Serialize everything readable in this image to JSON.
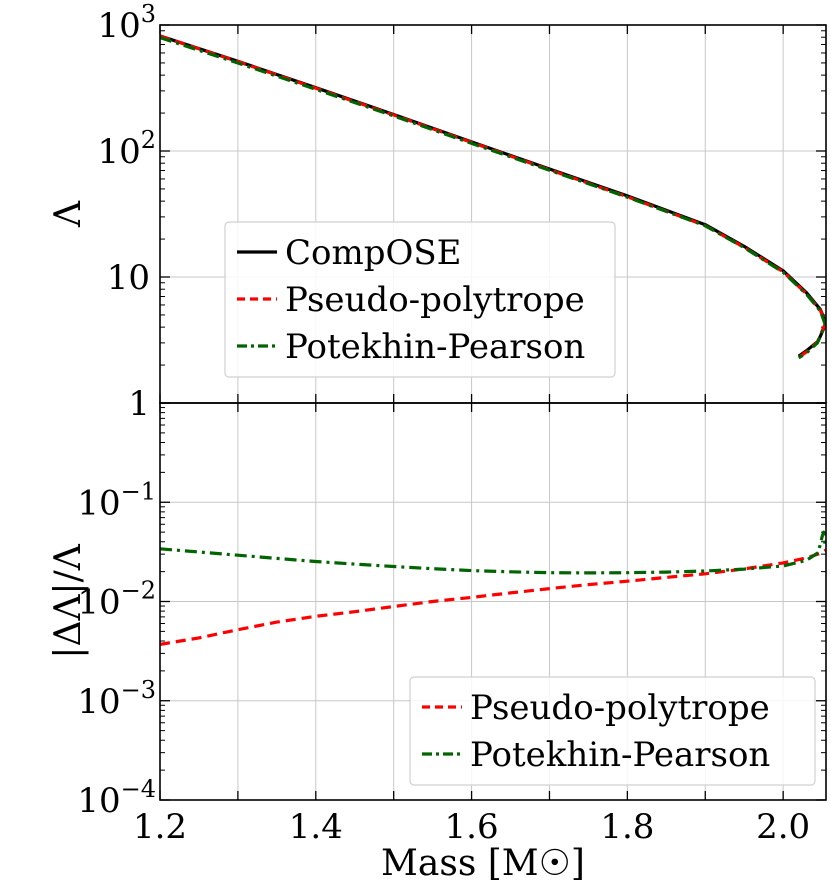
{
  "chart_data": [
    {
      "panel": "top",
      "type": "line",
      "ylabel": "Λ",
      "yscale": "log",
      "ylim": [
        1,
        1000
      ],
      "xlim": [
        1.2,
        2.055
      ],
      "grid": true,
      "yticks": [
        {
          "value": 1000,
          "base": "10",
          "exp": "3"
        },
        {
          "value": 100,
          "base": "10",
          "exp": "2"
        },
        {
          "value": 10,
          "base": "10",
          "exp": ""
        },
        {
          "value": 1,
          "base": "1",
          "exp": ""
        }
      ],
      "legend": {
        "placement": "center-left"
      },
      "series": [
        {
          "name": "CompOSE",
          "color": "#000000",
          "dash": "solid",
          "points": [
            [
              1.2,
              820
            ],
            [
              1.3,
              515
            ],
            [
              1.4,
              318
            ],
            [
              1.5,
              195
            ],
            [
              1.6,
              118
            ],
            [
              1.7,
              72
            ],
            [
              1.8,
              44
            ],
            [
              1.9,
              26
            ],
            [
              1.95,
              17.5
            ],
            [
              2.0,
              11.2
            ],
            [
              2.03,
              7.5
            ],
            [
              2.048,
              5.5
            ],
            [
              2.055,
              4.3
            ],
            [
              2.045,
              3.1
            ],
            [
              2.03,
              2.6
            ],
            [
              2.02,
              2.35
            ]
          ]
        },
        {
          "name": "Pseudo-polytrope",
          "color": "#ff0000",
          "dash": "dashed",
          "points": [
            [
              1.2,
              817
            ],
            [
              1.3,
              512
            ],
            [
              1.4,
              315
            ],
            [
              1.5,
              193
            ],
            [
              1.6,
              117
            ],
            [
              1.7,
              71
            ],
            [
              1.8,
              43.3
            ],
            [
              1.9,
              25.6
            ],
            [
              1.95,
              17.2
            ],
            [
              2.0,
              11.0
            ],
            [
              2.03,
              7.35
            ],
            [
              2.048,
              5.4
            ],
            [
              2.054,
              4.25
            ],
            [
              2.044,
              3.05
            ],
            [
              2.03,
              2.55
            ],
            [
              2.02,
              2.3
            ]
          ]
        },
        {
          "name": "Potekhin-Pearson",
          "color": "#006400",
          "dash": "dashdot",
          "points": [
            [
              1.2,
              795
            ],
            [
              1.3,
              499
            ],
            [
              1.4,
              309
            ],
            [
              1.5,
              190
            ],
            [
              1.6,
              115
            ],
            [
              1.7,
              70.3
            ],
            [
              1.8,
              43.0
            ],
            [
              1.9,
              25.5
            ],
            [
              1.95,
              17.1
            ],
            [
              2.0,
              10.9
            ],
            [
              2.03,
              7.3
            ],
            [
              2.048,
              5.35
            ],
            [
              2.054,
              4.2
            ],
            [
              2.044,
              3.0
            ],
            [
              2.03,
              2.5
            ],
            [
              2.02,
              2.28
            ]
          ]
        }
      ]
    },
    {
      "panel": "bottom",
      "type": "line",
      "xlabel": "Mass [M☉]",
      "ylabel": "|ΔΛ|/Λ",
      "yscale": "log",
      "ylim": [
        0.0001,
        1
      ],
      "xlim": [
        1.2,
        2.055
      ],
      "grid": true,
      "xticks": [
        "1.2",
        "1.4",
        "1.6",
        "1.8",
        "2.0"
      ],
      "yticks": [
        {
          "value": 0.1,
          "base": "10",
          "exp": "−1"
        },
        {
          "value": 0.01,
          "base": "10",
          "exp": "−2"
        },
        {
          "value": 0.001,
          "base": "10",
          "exp": "−3"
        },
        {
          "value": 0.0001,
          "base": "10",
          "exp": "−4"
        }
      ],
      "legend": {
        "placement": "bottom-right"
      },
      "series": [
        {
          "name": "Pseudo-polytrope",
          "color": "#ff0000",
          "dash": "dashed",
          "points": [
            [
              1.2,
              0.0037
            ],
            [
              1.25,
              0.0043
            ],
            [
              1.3,
              0.0052
            ],
            [
              1.35,
              0.0062
            ],
            [
              1.4,
              0.0071
            ],
            [
              1.45,
              0.0079
            ],
            [
              1.5,
              0.0089
            ],
            [
              1.55,
              0.01
            ],
            [
              1.6,
              0.011
            ],
            [
              1.65,
              0.0122
            ],
            [
              1.7,
              0.0135
            ],
            [
              1.75,
              0.0148
            ],
            [
              1.8,
              0.016
            ],
            [
              1.85,
              0.0175
            ],
            [
              1.9,
              0.019
            ],
            [
              1.95,
              0.0213
            ],
            [
              2.0,
              0.0245
            ],
            [
              2.03,
              0.0275
            ],
            [
              2.05,
              0.031
            ],
            [
              2.055,
              0.033
            ]
          ]
        },
        {
          "name": "Potekhin-Pearson",
          "color": "#006400",
          "dash": "dashdot",
          "points": [
            [
              1.2,
              0.034
            ],
            [
              1.25,
              0.0315
            ],
            [
              1.3,
              0.0293
            ],
            [
              1.35,
              0.0272
            ],
            [
              1.4,
              0.0253
            ],
            [
              1.45,
              0.0238
            ],
            [
              1.5,
              0.0225
            ],
            [
              1.55,
              0.0214
            ],
            [
              1.6,
              0.0205
            ],
            [
              1.65,
              0.0199
            ],
            [
              1.7,
              0.0195
            ],
            [
              1.75,
              0.0194
            ],
            [
              1.8,
              0.0195
            ],
            [
              1.85,
              0.0198
            ],
            [
              1.9,
              0.0203
            ],
            [
              1.95,
              0.0212
            ],
            [
              2.0,
              0.0228
            ],
            [
              2.03,
              0.026
            ],
            [
              2.045,
              0.031
            ],
            [
              2.05,
              0.045
            ],
            [
              2.052,
              0.05
            ],
            [
              2.054,
              0.036
            ]
          ]
        }
      ]
    }
  ]
}
